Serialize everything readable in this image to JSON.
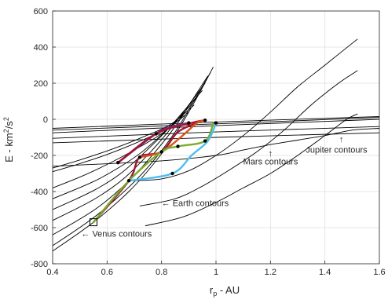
{
  "chart_data": {
    "type": "line",
    "title": "",
    "xlabel_base": "r",
    "xlabel_sub": "p",
    "xlabel_rest": " - AU",
    "ylabel_base": "E - km",
    "ylabel_sup1": "2",
    "ylabel_mid": "/s",
    "ylabel_sup2": "2",
    "xlim": [
      0.4,
      1.6
    ],
    "ylim": [
      -800,
      600
    ],
    "xticks": [
      0.4,
      0.6,
      0.8,
      1.0,
      1.2,
      1.4,
      1.6
    ],
    "xtick_labels": [
      "0.4",
      "0.6",
      "0.8",
      "1",
      "1.2",
      "1.4",
      "1.6"
    ],
    "yticks": [
      -800,
      -600,
      -400,
      -200,
      0,
      200,
      400,
      600
    ],
    "ytick_labels": [
      "-800",
      "-600",
      "-400",
      "-200",
      "0",
      "200",
      "400",
      "600"
    ],
    "grid": true,
    "contour_color": "#000000",
    "contours": [
      {
        "group": "Venus",
        "points": [
          [
            0.4,
            -730
          ],
          [
            0.55,
            -570
          ],
          [
            0.68,
            -400
          ],
          [
            0.78,
            -230
          ],
          [
            0.86,
            -60
          ],
          [
            0.93,
            120
          ],
          [
            0.99,
            290
          ]
        ]
      },
      {
        "group": "Venus",
        "points": [
          [
            0.4,
            -700
          ],
          [
            0.55,
            -545
          ],
          [
            0.68,
            -375
          ],
          [
            0.77,
            -230
          ],
          [
            0.85,
            -70
          ],
          [
            0.91,
            80
          ],
          [
            0.98,
            260
          ]
        ]
      },
      {
        "group": "Venus",
        "points": [
          [
            0.4,
            -640
          ],
          [
            0.55,
            -505
          ],
          [
            0.66,
            -370
          ],
          [
            0.76,
            -210
          ],
          [
            0.85,
            -40
          ],
          [
            0.91,
            100
          ],
          [
            0.97,
            240
          ]
        ]
      },
      {
        "group": "Venus",
        "points": [
          [
            0.4,
            -560
          ],
          [
            0.55,
            -445
          ],
          [
            0.66,
            -330
          ],
          [
            0.76,
            -180
          ],
          [
            0.84,
            -40
          ],
          [
            0.9,
            80
          ],
          [
            0.96,
            200
          ]
        ]
      },
      {
        "group": "Venus",
        "points": [
          [
            0.4,
            -500
          ],
          [
            0.55,
            -395
          ],
          [
            0.65,
            -300
          ],
          [
            0.74,
            -180
          ],
          [
            0.82,
            -60
          ],
          [
            0.89,
            60
          ],
          [
            0.95,
            160
          ]
        ]
      },
      {
        "group": "Venus",
        "points": [
          [
            0.4,
            -440
          ],
          [
            0.55,
            -345
          ],
          [
            0.64,
            -270
          ],
          [
            0.72,
            -190
          ],
          [
            0.79,
            -100
          ],
          [
            0.86,
            0
          ],
          [
            0.93,
            120
          ]
        ]
      },
      {
        "group": "Venus",
        "points": [
          [
            0.4,
            -380
          ],
          [
            0.5,
            -320
          ],
          [
            0.6,
            -250
          ],
          [
            0.7,
            -170
          ],
          [
            0.8,
            -80
          ],
          [
            0.86,
            0
          ],
          [
            0.92,
            80
          ]
        ]
      },
      {
        "group": "Venus",
        "points": [
          [
            0.4,
            -290
          ],
          [
            0.5,
            -245
          ],
          [
            0.6,
            -195
          ],
          [
            0.7,
            -135
          ],
          [
            0.78,
            -80
          ],
          [
            0.85,
            -20
          ],
          [
            0.9,
            40
          ]
        ]
      },
      {
        "group": "Venus",
        "points": [
          [
            0.4,
            -270
          ],
          [
            0.5,
            -225
          ],
          [
            0.6,
            -175
          ],
          [
            0.68,
            -130
          ],
          [
            0.76,
            -80
          ],
          [
            0.82,
            -40
          ],
          [
            0.88,
            20
          ]
        ]
      },
      {
        "group": "Earth",
        "points": [
          [
            0.69,
            -340
          ],
          [
            0.8,
            -330
          ],
          [
            0.9,
            -285
          ],
          [
            1.0,
            -200
          ],
          [
            1.1,
            -90
          ],
          [
            1.2,
            40
          ],
          [
            1.3,
            180
          ],
          [
            1.4,
            300
          ],
          [
            1.52,
            445
          ]
        ]
      },
      {
        "group": "Earth",
        "points": [
          [
            0.72,
            -480
          ],
          [
            0.85,
            -440
          ],
          [
            0.95,
            -370
          ],
          [
            1.05,
            -280
          ],
          [
            1.15,
            -180
          ],
          [
            1.25,
            -60
          ],
          [
            1.35,
            80
          ],
          [
            1.45,
            200
          ],
          [
            1.52,
            270
          ]
        ]
      },
      {
        "group": "Earth",
        "points": [
          [
            0.74,
            -590
          ],
          [
            0.88,
            -540
          ],
          [
            1.0,
            -460
          ],
          [
            1.1,
            -380
          ],
          [
            1.2,
            -300
          ],
          [
            1.3,
            -200
          ],
          [
            1.4,
            -90
          ],
          [
            1.48,
            0
          ],
          [
            1.52,
            30
          ]
        ]
      },
      {
        "group": "Mars",
        "points": [
          [
            0.4,
            -50
          ],
          [
            1.0,
            -15
          ],
          [
            1.6,
            15
          ]
        ]
      },
      {
        "group": "Mars",
        "points": [
          [
            0.4,
            -60
          ],
          [
            1.0,
            -25
          ],
          [
            1.6,
            10
          ]
        ]
      },
      {
        "group": "Mars",
        "points": [
          [
            0.4,
            -75
          ],
          [
            1.0,
            -35
          ],
          [
            1.6,
            0
          ]
        ]
      },
      {
        "group": "Mars",
        "points": [
          [
            0.4,
            -105
          ],
          [
            1.0,
            -70
          ],
          [
            1.6,
            -40
          ]
        ]
      },
      {
        "group": "Mars",
        "points": [
          [
            0.4,
            -130
          ],
          [
            1.0,
            -100
          ],
          [
            1.6,
            -75
          ]
        ]
      },
      {
        "group": "Jupiter",
        "points": [
          [
            0.4,
            -260
          ],
          [
            0.8,
            -230
          ],
          [
            1.0,
            -200
          ],
          [
            1.1,
            -170
          ],
          [
            1.2,
            -140
          ],
          [
            1.3,
            -115
          ],
          [
            1.4,
            -90
          ],
          [
            1.5,
            -60
          ],
          [
            1.6,
            -50
          ]
        ]
      }
    ],
    "trajectories": [
      {
        "color": "#7e2f8e",
        "points": [
          [
            0.64,
            -240
          ],
          [
            0.78,
            -80
          ],
          [
            0.84,
            -40
          ],
          [
            0.9,
            -20
          ]
        ]
      },
      {
        "color": "#a2142f",
        "points": [
          [
            0.64,
            -240
          ],
          [
            0.78,
            -80
          ],
          [
            0.91,
            -20
          ],
          [
            0.96,
            -5
          ]
        ]
      },
      {
        "color": "#a2142f",
        "points": [
          [
            0.55,
            -570
          ],
          [
            0.68,
            -340
          ],
          [
            0.72,
            -210
          ],
          [
            0.8,
            -180
          ],
          [
            0.86,
            -70
          ],
          [
            0.93,
            -20
          ]
        ]
      },
      {
        "color": "#d95319",
        "points": [
          [
            0.72,
            -210
          ],
          [
            0.8,
            -180
          ],
          [
            0.87,
            -100
          ],
          [
            0.93,
            -20
          ],
          [
            0.96,
            -5
          ]
        ]
      },
      {
        "color": "#77ac30",
        "points": [
          [
            0.55,
            -570
          ],
          [
            0.68,
            -340
          ],
          [
            0.8,
            -180
          ],
          [
            0.86,
            -150
          ],
          [
            0.96,
            -120
          ],
          [
            0.99,
            -20
          ]
        ]
      },
      {
        "color": "#4dbeee",
        "points": [
          [
            0.68,
            -340
          ],
          [
            0.84,
            -300
          ],
          [
            0.91,
            -200
          ],
          [
            0.97,
            -120
          ],
          [
            1.0,
            -20
          ]
        ]
      }
    ],
    "markers": [
      {
        "shape": "dot",
        "x": 0.64,
        "y": -240
      },
      {
        "shape": "dot",
        "x": 0.68,
        "y": -340
      },
      {
        "shape": "dot",
        "x": 0.72,
        "y": -210
      },
      {
        "shape": "dot",
        "x": 0.78,
        "y": -80
      },
      {
        "shape": "dot",
        "x": 0.8,
        "y": -180
      },
      {
        "shape": "dot",
        "x": 0.84,
        "y": -300
      },
      {
        "shape": "dot",
        "x": 0.86,
        "y": -150
      },
      {
        "shape": "dot",
        "x": 0.9,
        "y": -20
      },
      {
        "shape": "dot",
        "x": 0.96,
        "y": -120
      },
      {
        "shape": "dot",
        "x": 0.96,
        "y": -5
      },
      {
        "shape": "dot",
        "x": 1.0,
        "y": -20
      },
      {
        "shape": "square",
        "x": 0.55,
        "y": -570
      }
    ],
    "annotations": [
      {
        "text": "← Venus contours",
        "x": 0.505,
        "y": -650,
        "anchor": "start"
      },
      {
        "text": "← Earth contours",
        "x": 0.8,
        "y": -480,
        "anchor": "start"
      },
      {
        "text": "Mars contours",
        "x": 1.1,
        "y": -250,
        "anchor": "start",
        "arrow": "↑",
        "arrow_x": 1.2,
        "arrow_y": -205
      },
      {
        "text": "Jupiter contours",
        "x": 1.33,
        "y": -185,
        "anchor": "start",
        "arrow": "↑",
        "arrow_x": 1.46,
        "arrow_y": -125
      }
    ]
  }
}
